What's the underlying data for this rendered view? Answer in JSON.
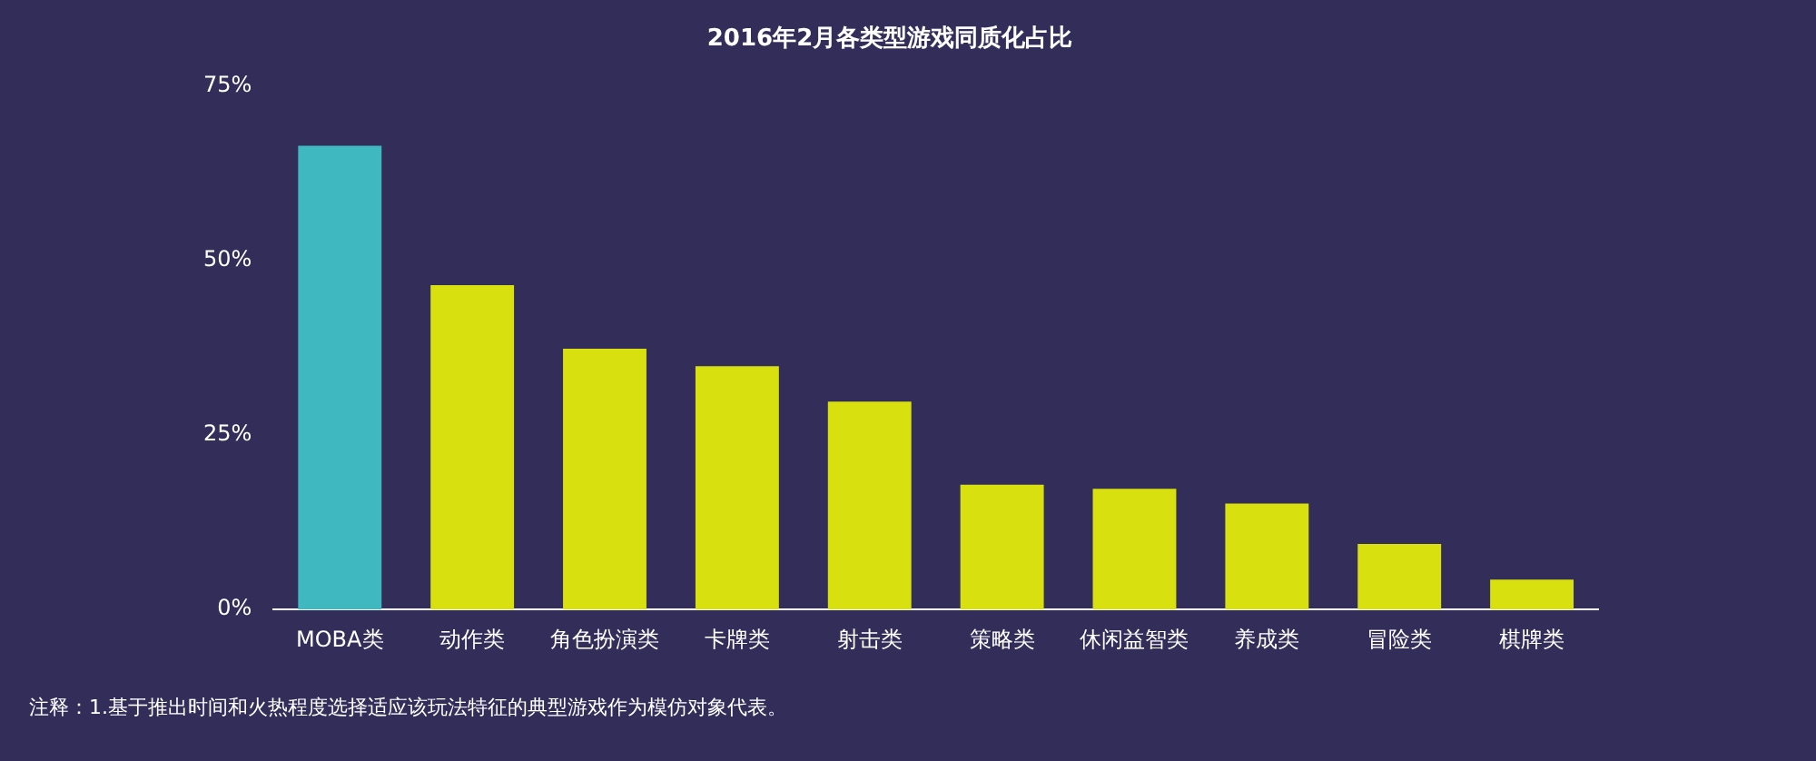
{
  "chart_data": {
    "type": "bar",
    "title": "2016年2月各类型游戏同质化占比",
    "categories": [
      "MOBA类",
      "动作类",
      "角色扮演类",
      "卡牌类",
      "射击类",
      "策略类",
      "休闲益智类",
      "养成类",
      "冒险类",
      "棋牌类"
    ],
    "values": [
      66.5,
      46.5,
      37.4,
      34.9,
      29.8,
      17.9,
      17.3,
      15.2,
      9.4,
      4.3
    ],
    "colors": [
      "#40b8c0",
      "#d8e010",
      "#d8e010",
      "#d8e010",
      "#d8e010",
      "#d8e010",
      "#d8e010",
      "#d8e010",
      "#d8e010",
      "#d8e010"
    ],
    "ylim": [
      0,
      75
    ],
    "yticks": [
      {
        "value": 0,
        "label": "0%"
      },
      {
        "value": 25,
        "label": "25%"
      },
      {
        "value": 50,
        "label": "50%"
      },
      {
        "value": 75,
        "label": "75%"
      }
    ],
    "grid": false,
    "legend": false,
    "annotations": [
      "注释：1.基于推出时间和火热程度选择适应该玩法特征的典型游戏作为模仿对象代表。"
    ]
  }
}
